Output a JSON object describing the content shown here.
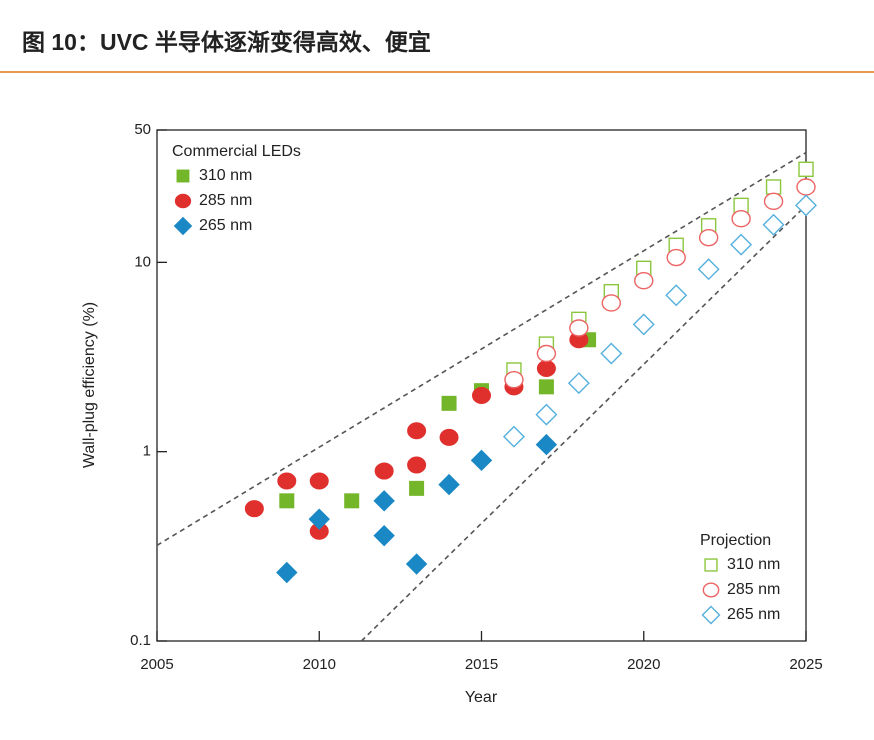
{
  "header": {
    "title": "图 10：UVC 半导体逐渐变得高效、便宜"
  },
  "chart_data": {
    "type": "scatter",
    "xlabel": "Year",
    "ylabel": "Wall-plug efficiency (%)",
    "xlim": [
      2005,
      2025
    ],
    "xticks": [
      2005,
      2010,
      2015,
      2020,
      2025
    ],
    "ylim": [
      0.1,
      50
    ],
    "yticks": [
      0.1,
      1,
      10,
      50
    ],
    "yscale": "log",
    "series": [
      {
        "name": "310 nm",
        "group": "Commercial LEDs",
        "marker": "square",
        "filled": true,
        "color": "#74b62a",
        "x": [
          2009,
          2011,
          2013,
          2014,
          2015,
          2017,
          2018.3
        ],
        "values": [
          0.55,
          0.55,
          0.64,
          1.8,
          2.1,
          2.2,
          3.9
        ]
      },
      {
        "name": "285 nm",
        "group": "Commercial LEDs",
        "marker": "circle",
        "filled": true,
        "color": "#e0302e",
        "x": [
          2008,
          2009,
          2010,
          2010,
          2012,
          2013,
          2013,
          2014,
          2015,
          2016,
          2017,
          2018
        ],
        "values": [
          0.5,
          0.7,
          0.7,
          0.38,
          0.79,
          1.29,
          0.85,
          1.19,
          1.98,
          2.2,
          2.75,
          3.9
        ]
      },
      {
        "name": "265 nm",
        "group": "Commercial LEDs",
        "marker": "diamond",
        "filled": true,
        "color": "#1a88c4",
        "x": [
          2009,
          2010,
          2012,
          2012,
          2013,
          2014,
          2015,
          2017
        ],
        "values": [
          0.23,
          0.44,
          0.55,
          0.36,
          0.255,
          0.67,
          0.9,
          1.09
        ]
      },
      {
        "name": "310 nm",
        "group": "Projection",
        "marker": "square",
        "filled": false,
        "color": "#8cc63f",
        "x": [
          2016,
          2017,
          2018,
          2019,
          2020,
          2021,
          2022,
          2023,
          2024,
          2025
        ],
        "values": [
          2.7,
          3.7,
          5,
          7,
          9.3,
          12.3,
          15.6,
          20,
          25,
          31
        ]
      },
      {
        "name": "285 nm",
        "group": "Projection",
        "marker": "circle",
        "filled": false,
        "color": "#ec6464",
        "x": [
          2016,
          2017,
          2018,
          2019,
          2020,
          2021,
          2022,
          2023,
          2024,
          2025
        ],
        "values": [
          2.4,
          3.3,
          4.5,
          6.1,
          8,
          10.6,
          13.5,
          17,
          21,
          25
        ]
      },
      {
        "name": "265 nm",
        "group": "Projection",
        "marker": "diamond",
        "filled": false,
        "color": "#55b0de",
        "x": [
          2016,
          2017,
          2018,
          2019,
          2020,
          2021,
          2022,
          2023,
          2024,
          2025
        ],
        "values": [
          1.2,
          1.57,
          2.3,
          3.3,
          4.7,
          6.7,
          9.2,
          12.4,
          15.8,
          20
        ]
      }
    ],
    "trend_lines": [
      {
        "x": [
          2005,
          2025
        ],
        "values": [
          0.32,
          38
        ]
      },
      {
        "x": [
          2011.3,
          2025
        ],
        "values": [
          0.1,
          20
        ]
      }
    ]
  }
}
